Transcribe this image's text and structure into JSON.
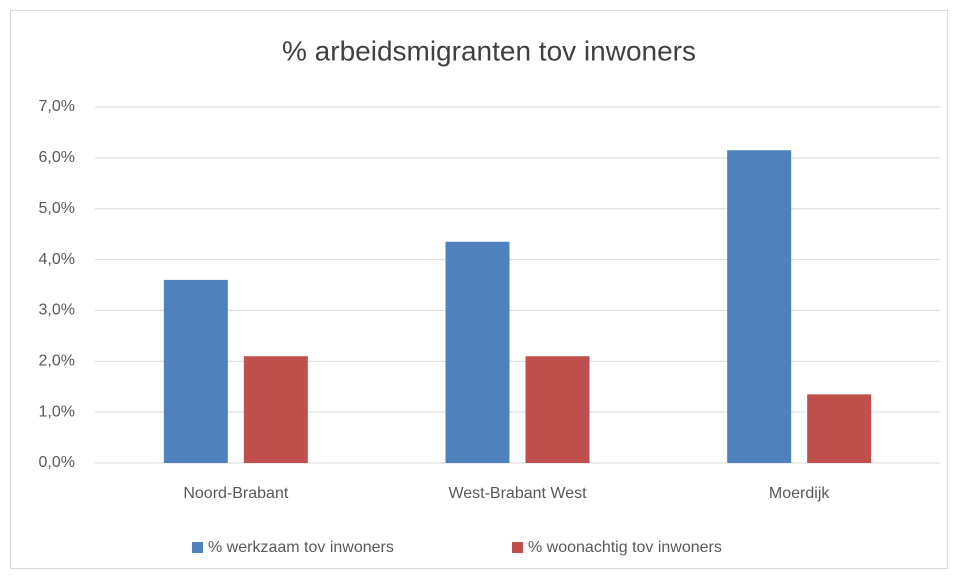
{
  "chart_data": {
    "type": "bar",
    "title": "% arbeidsmigranten tov inwoners",
    "categories": [
      "Noord-Brabant",
      "West-Brabant West",
      "Moerdijk"
    ],
    "series": [
      {
        "name": "% werkzaam tov inwoners",
        "color": "#4f81bd",
        "values": [
          3.6,
          4.35,
          6.15
        ]
      },
      {
        "name": "% woonachtig tov inwoners",
        "color": "#c0504d",
        "values": [
          2.1,
          2.1,
          1.35
        ]
      }
    ],
    "ylim": [
      0,
      7
    ],
    "yticks": [
      {
        "value": 0,
        "label": "0,0%"
      },
      {
        "value": 1,
        "label": "1,0%"
      },
      {
        "value": 2,
        "label": "2,0%"
      },
      {
        "value": 3,
        "label": "3,0%"
      },
      {
        "value": 4,
        "label": "4,0%"
      },
      {
        "value": 5,
        "label": "5,0%"
      },
      {
        "value": 6,
        "label": "6,0%"
      },
      {
        "value": 7,
        "label": "7,0%"
      }
    ],
    "grid": true,
    "legend": "bottom"
  }
}
